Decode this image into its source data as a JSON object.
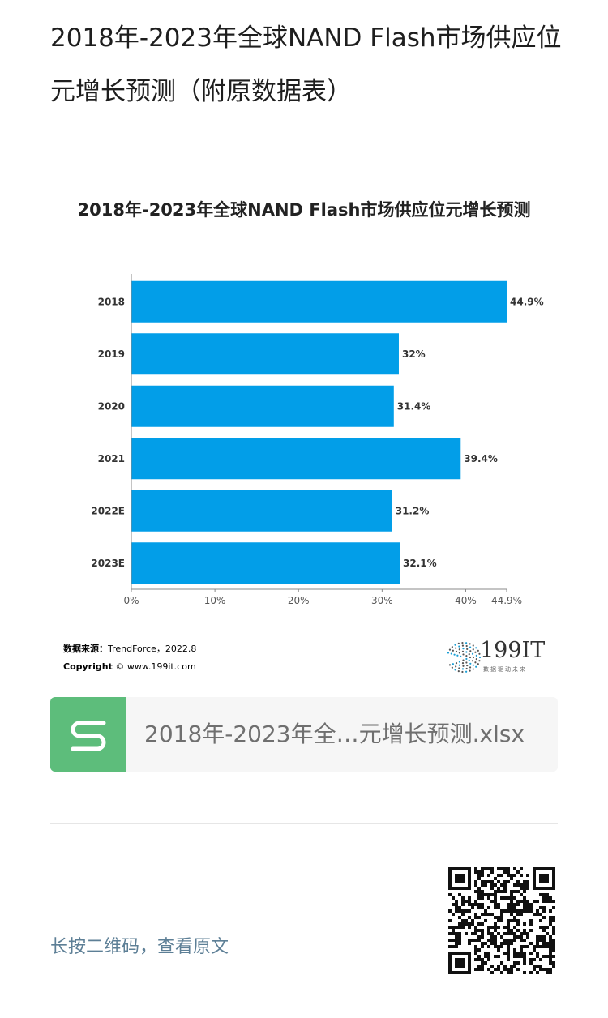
{
  "article": {
    "title": "2018年-2023年全球NAND Flash市场供应位元增长预测（附原数据表）"
  },
  "chart_data": {
    "type": "bar",
    "orientation": "horizontal",
    "title": "2018年-2023年全球NAND Flash市场供应位元增长预测",
    "categories": [
      "2018",
      "2019",
      "2020",
      "2021",
      "2022E",
      "2023E"
    ],
    "values": [
      44.9,
      32,
      31.4,
      39.4,
      31.2,
      32.1
    ],
    "value_labels": [
      "44.9%",
      "32%",
      "31.4%",
      "39.4%",
      "31.2%",
      "32.1%"
    ],
    "x_ticks": [
      "0%",
      "10%",
      "20%",
      "30%",
      "40%",
      "44.9%"
    ],
    "x_tick_values": [
      0,
      10,
      20,
      30,
      40,
      44.9
    ],
    "xlim": [
      0,
      44.9
    ],
    "bar_color": "#029ee8",
    "grid": false
  },
  "source": {
    "label": "数据来源：",
    "value": "TrendForce，2022.8",
    "copyright_label": "Copyright",
    "copyright_value": "© www.199it.com"
  },
  "logo": {
    "text": "199IT",
    "tagline": "数据驱动未来"
  },
  "attachment": {
    "icon": "spreadsheet-s-icon",
    "icon_color": "#5dbd7b",
    "filename": "2018年-2023年全…元增长预测.xlsx"
  },
  "footer": {
    "qr_hint": "长按二维码，查看原文",
    "qr_icon": "qr-code-icon"
  }
}
